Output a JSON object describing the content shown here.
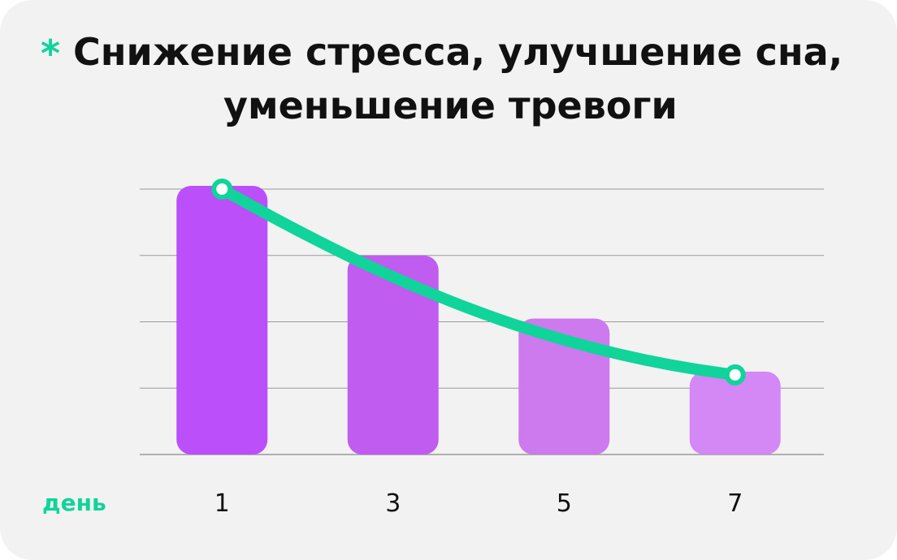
{
  "title": {
    "marker": "*",
    "line1": "Снижение стресса, улучшение сна,",
    "line2": "уменьшение тревоги"
  },
  "colors": {
    "background": "#f2f2f2",
    "accent": "#10d49a",
    "gridline": "#9a9a9a",
    "text": "#111111",
    "bars": [
      "#bb4ffa",
      "#c05cf0",
      "#cc7aee",
      "#d488f6"
    ]
  },
  "chart_data": {
    "type": "bar",
    "xlabel": "день",
    "ylabel": "",
    "grid": true,
    "ylim": [
      0,
      4
    ],
    "categories": [
      "1",
      "3",
      "5",
      "7"
    ],
    "series": [
      {
        "values": [
          4.0,
          2.95,
          2.0,
          1.2
        ]
      }
    ],
    "trend_line": {
      "style": "curve",
      "start_value": 4.0,
      "end_value": 1.2
    }
  }
}
